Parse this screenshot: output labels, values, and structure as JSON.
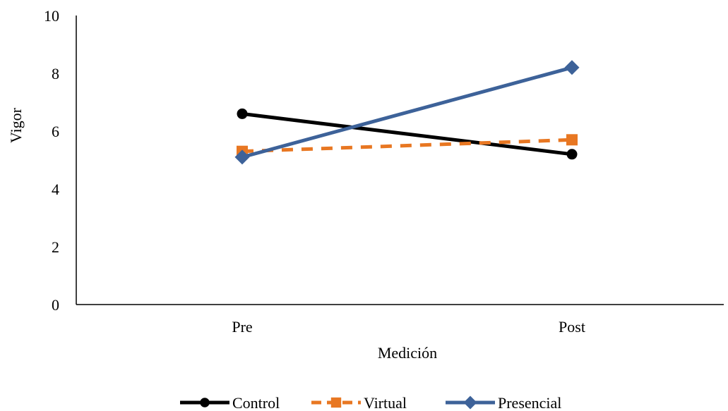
{
  "chart_data": {
    "type": "line",
    "categories": [
      "Pre",
      "Post"
    ],
    "series": [
      {
        "name": "Control",
        "values": [
          6.6,
          5.2
        ],
        "color": "#000000",
        "marker": "circle",
        "dash": "solid"
      },
      {
        "name": "Virtual",
        "values": [
          5.3,
          5.7
        ],
        "color": "#E87722",
        "marker": "square",
        "dash": "dashed"
      },
      {
        "name": "Presencial",
        "values": [
          5.1,
          8.2
        ],
        "color": "#3D6299",
        "marker": "diamond",
        "dash": "solid"
      }
    ],
    "ylabel": "Vigor",
    "xlabel": "Medición",
    "ylim": [
      0,
      10
    ],
    "yticks": [
      "0",
      "2",
      "4",
      "6",
      "8",
      "10"
    ],
    "grid": false,
    "legend_position": "bottom"
  }
}
